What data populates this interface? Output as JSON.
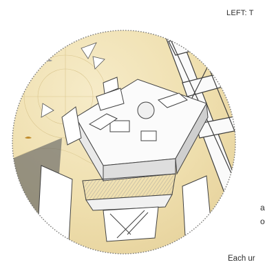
{
  "text": {
    "heading": "LEFT: T",
    "fragment_a": "a",
    "fragment_o": "o",
    "caption": "Each ur"
  },
  "colors": {
    "sky": "#f1e3b8",
    "sky_shadow": "#e4cf97",
    "structure": "#f7f7f7",
    "outline": "#555555",
    "circle_dots": "#7a7a7a",
    "text": "#2b2b2b"
  },
  "illustration": {
    "subject": "axonometric architectural section of a tower platform inside a dotted circular frame"
  }
}
